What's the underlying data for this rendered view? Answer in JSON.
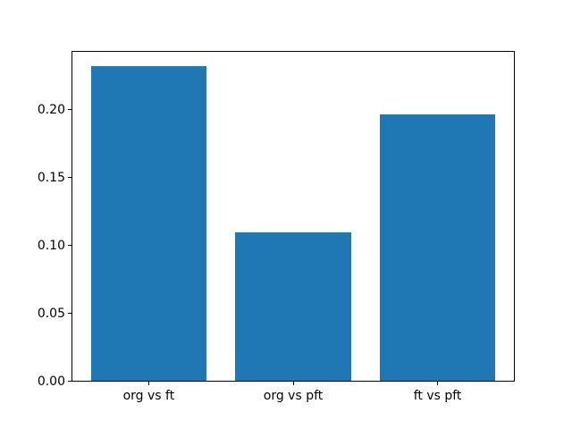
{
  "chart_data": {
    "type": "bar",
    "categories": [
      "org vs ft",
      "org vs pft",
      "ft vs pft"
    ],
    "values": [
      0.232,
      0.109,
      0.196
    ],
    "title": "",
    "xlabel": "",
    "ylabel": "",
    "ylim": [
      0,
      0.2436
    ],
    "yticks": {
      "values": [
        0.0,
        0.05,
        0.1,
        0.15,
        0.2
      ],
      "labels": [
        "0.00",
        "0.05",
        "0.10",
        "0.15",
        "0.20"
      ]
    },
    "bar_color": "#1f77b4",
    "background": "#ffffff",
    "axes_edge_color": "#000000",
    "grid": false,
    "legend": null
  }
}
